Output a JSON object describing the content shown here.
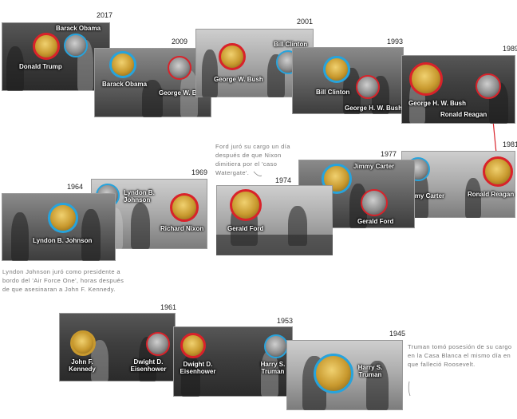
{
  "colors": {
    "red": "#d9222a",
    "blue": "#27a3dc",
    "gold": "#c8992e"
  },
  "years": {
    "y2017": "2017",
    "y2009": "2009",
    "y2001": "2001",
    "y1993": "1993",
    "y1989": "1989",
    "y1981": "1981",
    "y1977": "1977",
    "y1974": "1974",
    "y1969": "1969",
    "y1964": "1964",
    "y1961": "1961",
    "y1953": "1953",
    "y1945": "1945"
  },
  "names": {
    "trump": "Donald Trump",
    "obama_2017": "Barack Obama",
    "obama_2009": "Barack Obama",
    "gwbush_2009": "George W. Bush",
    "gwbush_2001": "George W. Bush",
    "clinton_2001": "Bill Clinton",
    "clinton_1993": "Bill Clinton",
    "ghwbush_1993": "George H. W. Bush",
    "ghwbush_1989": "George H. W. Bush",
    "reagan_1989": "Ronald Reagan",
    "reagan_1981": "Ronald Reagan",
    "carter_1981": "Jimmy Carter",
    "carter_1977": "Jimmy Carter",
    "ford_1977": "Gerald Ford",
    "ford_1974": "Gerald Ford",
    "nixon_1969": "Richard Nixon",
    "lbj_1969": "Lyndon B. Johnson",
    "lbj_1964": "Lyndon B. Johnson",
    "jfk_1961": "John F. Kennedy",
    "ike_1961": "Dwight D. Eisenhower",
    "ike_1953": "Dwight D. Eisenhower",
    "truman_1953": "Harry S. Truman",
    "truman_1945": "Harry S. Truman"
  },
  "notes": {
    "ford": "Ford juró su cargo un día después de que Nixon dimitiera por el 'caso Watergate'.",
    "johnson": "Lyndon Johnson juró como presidente a bordo del 'Air Force One', horas después de que asesinaran a John F. Kennedy.",
    "truman": "Truman tomó posesión de su cargo en la Casa Blanca el mismo día en que falleció Roosevelt."
  }
}
